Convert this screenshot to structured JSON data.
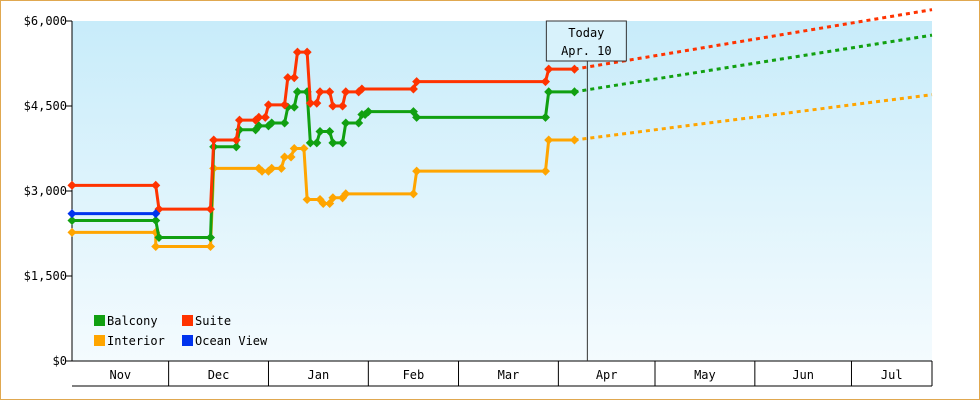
{
  "chart_data": {
    "type": "line",
    "title": "",
    "xlabel": "",
    "ylabel": "",
    "ylim": [
      0,
      6000
    ],
    "y_ticks": [
      "$0",
      "$1,500",
      "$3,000",
      "$4,500",
      "$6,000"
    ],
    "y_tick_values": [
      0,
      1500,
      3000,
      4500,
      6000
    ],
    "x_months": [
      "Nov",
      "Dec",
      "Jan",
      "Feb",
      "Mar",
      "Apr",
      "May",
      "Jun",
      "Jul"
    ],
    "x_month_starts": [
      0,
      30,
      61,
      92,
      120,
      151,
      181,
      212,
      242
    ],
    "x_range_days": [
      0,
      267
    ],
    "today": {
      "label_line1": "Today",
      "label_line2": "Apr. 10",
      "day": 160
    },
    "grid": false,
    "legend_position": "bottom-left",
    "series": [
      {
        "name": "Interior",
        "color": "#ffa500",
        "points": [
          [
            0,
            2270
          ],
          [
            26,
            2270
          ],
          [
            26,
            2020
          ],
          [
            43,
            2020
          ],
          [
            44,
            3400
          ],
          [
            58,
            3400
          ],
          [
            59,
            3350
          ],
          [
            61,
            3350
          ],
          [
            62,
            3400
          ],
          [
            65,
            3400
          ],
          [
            66,
            3600
          ],
          [
            68,
            3600
          ],
          [
            69,
            3750
          ],
          [
            72,
            3750
          ],
          [
            73,
            2850
          ],
          [
            77,
            2850
          ],
          [
            78,
            2780
          ],
          [
            80,
            2780
          ],
          [
            81,
            2880
          ],
          [
            84,
            2880
          ],
          [
            85,
            2950
          ],
          [
            106,
            2950
          ],
          [
            107,
            3350
          ],
          [
            147,
            3350
          ],
          [
            148,
            3900
          ],
          [
            156,
            3900
          ]
        ],
        "forecast": [
          [
            156,
            3900
          ],
          [
            267,
            4700
          ]
        ]
      },
      {
        "name": "Balcony",
        "color": "#11a011",
        "points": [
          [
            0,
            2480
          ],
          [
            26,
            2480
          ],
          [
            27,
            2180
          ],
          [
            43,
            2180
          ],
          [
            44,
            3780
          ],
          [
            51,
            3780
          ],
          [
            52,
            4080
          ],
          [
            57,
            4080
          ],
          [
            58,
            4150
          ],
          [
            61,
            4150
          ],
          [
            62,
            4200
          ],
          [
            66,
            4200
          ],
          [
            67,
            4480
          ],
          [
            69,
            4480
          ],
          [
            70,
            4750
          ],
          [
            73,
            4750
          ],
          [
            74,
            3850
          ],
          [
            76,
            3850
          ],
          [
            77,
            4050
          ],
          [
            80,
            4050
          ],
          [
            81,
            3850
          ],
          [
            84,
            3850
          ],
          [
            85,
            4200
          ],
          [
            89,
            4200
          ],
          [
            90,
            4350
          ],
          [
            91,
            4350
          ],
          [
            92,
            4400
          ],
          [
            106,
            4400
          ],
          [
            107,
            4300
          ],
          [
            147,
            4300
          ],
          [
            148,
            4750
          ],
          [
            156,
            4750
          ]
        ],
        "forecast": [
          [
            156,
            4750
          ],
          [
            267,
            5750
          ]
        ]
      },
      {
        "name": "Suite",
        "color": "#ff3300",
        "points": [
          [
            0,
            3100
          ],
          [
            26,
            3100
          ],
          [
            27,
            2680
          ],
          [
            43,
            2680
          ],
          [
            44,
            3900
          ],
          [
            51,
            3900
          ],
          [
            52,
            4250
          ],
          [
            57,
            4250
          ],
          [
            58,
            4300
          ],
          [
            60,
            4300
          ],
          [
            61,
            4520
          ],
          [
            66,
            4520
          ],
          [
            67,
            5000
          ],
          [
            69,
            5000
          ],
          [
            70,
            5450
          ],
          [
            73,
            5450
          ],
          [
            74,
            4550
          ],
          [
            76,
            4550
          ],
          [
            77,
            4750
          ],
          [
            80,
            4750
          ],
          [
            81,
            4500
          ],
          [
            84,
            4500
          ],
          [
            85,
            4750
          ],
          [
            89,
            4750
          ],
          [
            90,
            4800
          ],
          [
            106,
            4800
          ],
          [
            107,
            4930
          ],
          [
            147,
            4930
          ],
          [
            148,
            5150
          ],
          [
            156,
            5150
          ]
        ],
        "forecast": [
          [
            156,
            5150
          ],
          [
            267,
            6200
          ]
        ]
      },
      {
        "name": "Ocean View",
        "color": "#0033ee",
        "points": [
          [
            0,
            2600
          ],
          [
            26,
            2600
          ]
        ],
        "forecast": []
      }
    ],
    "legend_items": [
      {
        "label": "Balcony",
        "color": "#11a011"
      },
      {
        "label": "Suite",
        "color": "#ff3300"
      },
      {
        "label": "Interior",
        "color": "#ffa500"
      },
      {
        "label": "Ocean View",
        "color": "#0033ee"
      }
    ]
  }
}
